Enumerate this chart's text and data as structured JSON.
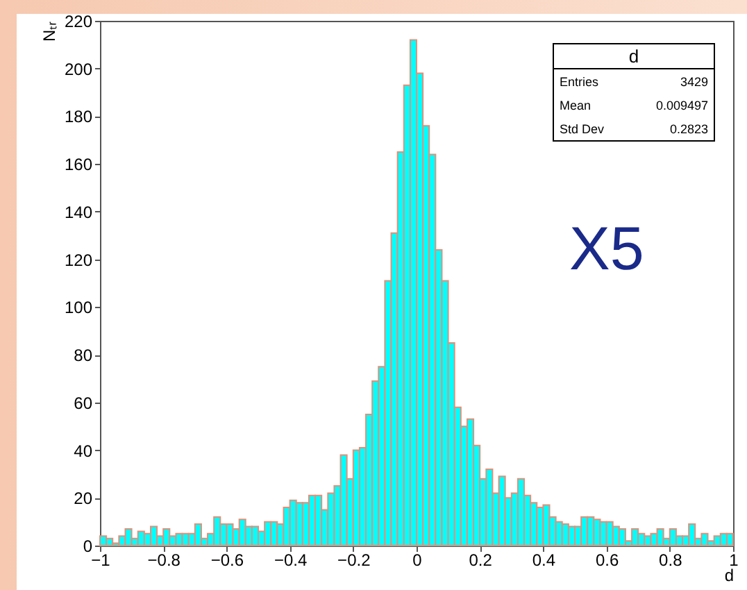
{
  "chart_data": {
    "type": "histogram",
    "xlabel": "d",
    "ylabel": "Nₜᵣ",
    "annotations": [
      "d",
      "Entries",
      "3429",
      "Mean",
      "0.009497",
      "Std Dev",
      "0.2823",
      "X5"
    ],
    "bins": [
      -1,
      -0.98,
      -0.96,
      -0.94,
      -0.92,
      -0.9,
      -0.88,
      -0.86,
      -0.84,
      -0.82,
      -0.8,
      -0.78,
      -0.76,
      -0.74,
      -0.72,
      -0.7,
      -0.68,
      -0.66,
      -0.64,
      -0.62,
      -0.6,
      -0.58,
      -0.56,
      -0.54,
      -0.52,
      -0.5,
      -0.48,
      -0.46,
      -0.44,
      -0.42,
      -0.4,
      -0.38,
      -0.36,
      -0.34,
      -0.32,
      -0.3,
      -0.28,
      -0.26,
      -0.24,
      -0.22,
      -0.2,
      -0.18,
      -0.16,
      -0.14,
      -0.12,
      -0.1,
      -0.08,
      -0.06,
      -0.04,
      -0.02,
      0,
      0.02,
      0.04,
      0.06,
      0.08,
      0.1,
      0.12,
      0.14,
      0.16,
      0.18,
      0.2,
      0.22,
      0.24,
      0.26,
      0.28,
      0.3,
      0.32,
      0.34,
      0.36,
      0.38,
      0.4,
      0.42,
      0.44,
      0.46,
      0.48,
      0.5,
      0.52,
      0.54,
      0.56,
      0.58,
      0.6,
      0.62,
      0.64,
      0.66,
      0.68,
      0.7,
      0.72,
      0.74,
      0.76,
      0.78,
      0.8,
      0.82,
      0.84,
      0.86,
      0.88,
      0.9,
      0.92,
      0.94,
      0.96,
      0.98,
      1
    ],
    "values": [
      4,
      3,
      1,
      4,
      7,
      3,
      6,
      5,
      8,
      4,
      7,
      4,
      5,
      5,
      5,
      9,
      3,
      5,
      12,
      9,
      9,
      7,
      11,
      8,
      8,
      6,
      10,
      10,
      9,
      16,
      19,
      18,
      18,
      21,
      21,
      15,
      22,
      25,
      38,
      28,
      40,
      41,
      55,
      69,
      75,
      111,
      131,
      165,
      193,
      212,
      198,
      176,
      164,
      124,
      111,
      85,
      58,
      50,
      53,
      42,
      28,
      32,
      22,
      29,
      20,
      22,
      28,
      21,
      18,
      16,
      17,
      12,
      10,
      9,
      8,
      8,
      12,
      12,
      11,
      10,
      10,
      8,
      7,
      2,
      7,
      5,
      4,
      5,
      7,
      3,
      7,
      4,
      4,
      9,
      3,
      5,
      2,
      4,
      5,
      5
    ],
    "color": "#00ffff",
    "xlim": [
      -1,
      1
    ],
    "xticks": [
      -1,
      -0.8,
      -0.6,
      -0.4,
      -0.2,
      0,
      0.2,
      0.4,
      0.6,
      0.8,
      1
    ],
    "ylim": [
      0,
      220
    ],
    "yticks": [
      0,
      20,
      40,
      60,
      80,
      100,
      120,
      140,
      160,
      180,
      200,
      220
    ]
  }
}
